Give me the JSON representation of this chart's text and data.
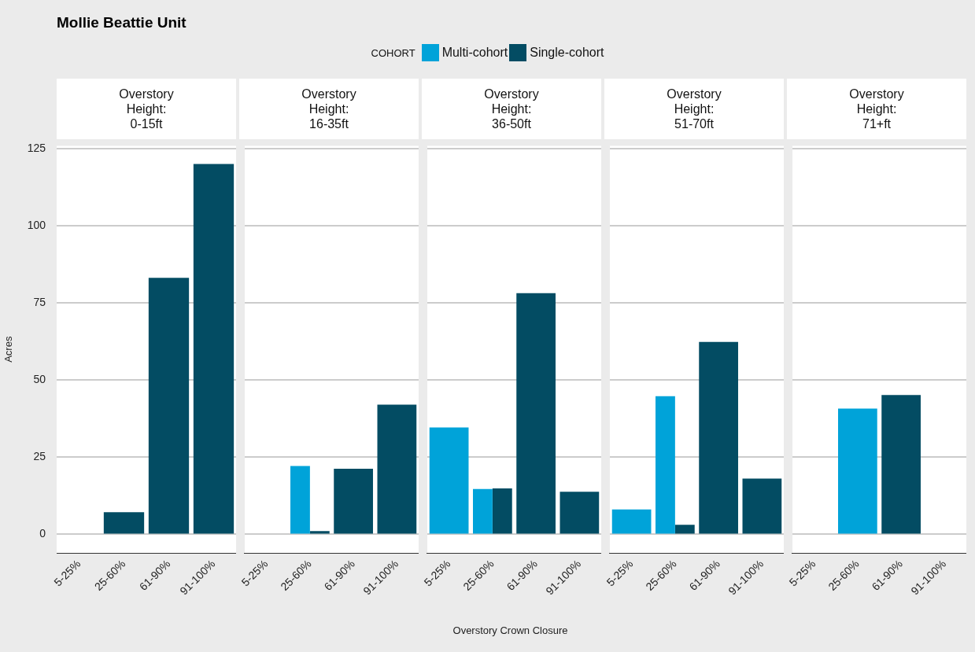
{
  "chart_data": [
    {
      "type": "bar",
      "title": "Mollie Beattie Unit",
      "subtitle": "Overstory Height: 0-15ft",
      "legend": "top",
      "legend_title": "COHORT",
      "ylabel": "Acres",
      "grid": "y",
      "categories": [
        "5-25%",
        "25-60%",
        "61-90%",
        "91-100%"
      ],
      "ylim": [
        -6,
        126
      ],
      "yticks": [
        0,
        25,
        50,
        75,
        100,
        125
      ],
      "series": [
        {
          "name": "Multi-cohort",
          "color": "#00a3d9",
          "values": [
            null,
            null,
            null,
            null
          ]
        },
        {
          "name": "Single-cohort",
          "color": "#034c63",
          "values": [
            null,
            7.2,
            83.2,
            120.1
          ]
        }
      ]
    },
    {
      "type": "bar",
      "subtitle": "Overstory Height: 16-35ft",
      "grid": "y",
      "tick_labels": "x",
      "categories": [
        "5-25%",
        "25-60%",
        "61-90%",
        "91-100%"
      ],
      "ylim": [
        -6,
        126
      ],
      "yticks": [
        0,
        25,
        50,
        75,
        100,
        125
      ],
      "series": [
        {
          "color": "#00a3d9",
          "values": [
            null,
            22.2,
            null,
            null
          ]
        },
        {
          "color": "#034c63",
          "values": [
            null,
            1.1,
            21.3,
            42.1
          ]
        }
      ]
    },
    {
      "type": "bar",
      "subtitle": "Overstory Height: 36-50ft",
      "xlabel": "Overstory Crown Closure",
      "grid": "y",
      "tick_labels": "x",
      "categories": [
        "5-25%",
        "25-60%",
        "61-90%",
        "91-100%"
      ],
      "ylim": [
        -6,
        126
      ],
      "yticks": [
        0,
        25,
        50,
        75,
        100,
        125
      ],
      "series": [
        {
          "color": "#00a3d9",
          "values": [
            34.7,
            14.7,
            null,
            null
          ]
        },
        {
          "color": "#034c63",
          "values": [
            null,
            14.9,
            78.2,
            13.8
          ]
        }
      ]
    },
    {
      "type": "bar",
      "subtitle": "Overstory Height: 51-70ft",
      "grid": "y",
      "tick_labels": "x",
      "categories": [
        "5-25%",
        "25-60%",
        "61-90%",
        "91-100%"
      ],
      "ylim": [
        -6,
        126
      ],
      "yticks": [
        0,
        25,
        50,
        75,
        100,
        125
      ],
      "series": [
        {
          "color": "#00a3d9",
          "values": [
            8.1,
            44.8,
            null,
            null
          ]
        },
        {
          "color": "#034c63",
          "values": [
            null,
            3.1,
            62.4,
            18.1
          ]
        }
      ]
    },
    {
      "type": "bar",
      "subtitle": "Overstory Height: 71+ft",
      "grid": "y",
      "tick_labels": "x",
      "categories": [
        "5-25%",
        "25-60%",
        "61-90%",
        "91-100%"
      ],
      "ylim": [
        -6,
        126
      ],
      "yticks": [
        0,
        25,
        50,
        75,
        100,
        125
      ],
      "series": [
        {
          "color": "#00a3d9",
          "values": [
            null,
            40.8,
            null,
            null
          ]
        },
        {
          "color": "#034c63",
          "values": [
            null,
            null,
            45.2,
            null
          ]
        }
      ]
    }
  ]
}
